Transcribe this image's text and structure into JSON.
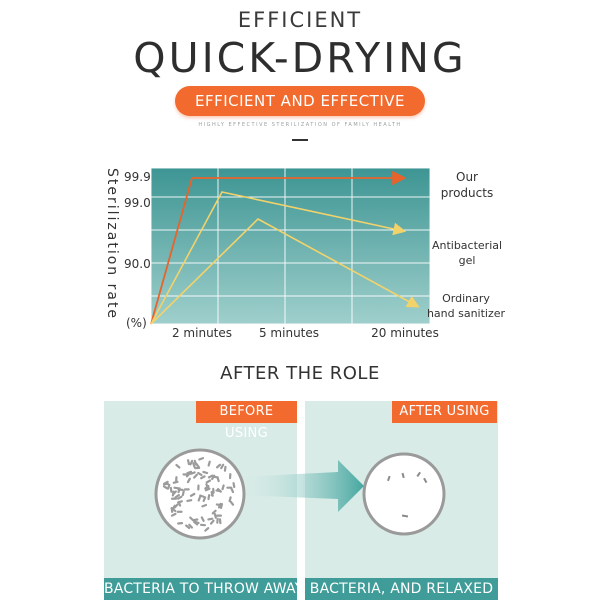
{
  "header": {
    "eyebrow": "EFFICIENT",
    "headline": "QUICK-DRYING",
    "pill": "EFFICIENT AND EFFECTIVE",
    "tagline": "HIGHLY EFFECTIVE STERILIZATION OF FAMILY HEALTH"
  },
  "chart_data": {
    "type": "line",
    "ylabel": "Sterilization rate",
    "y_ticks": [
      "99.9",
      "99.0",
      "90.0",
      "(%)"
    ],
    "x_ticks": [
      "2 minutes",
      "5 minutes",
      "20 minutes"
    ],
    "grid": true,
    "series": [
      {
        "name": "Our products",
        "name_lines": [
          "Our",
          "products"
        ],
        "color": "#e8632b",
        "points": [
          0,
          99.9,
          99.9,
          99.9
        ]
      },
      {
        "name": "Antibacterial gel",
        "name_lines": [
          "Antibacterial",
          "gel"
        ],
        "color": "#f2d36b",
        "points": [
          0,
          99.5,
          99.0,
          95.0
        ]
      },
      {
        "name": "Ordinary hand sanitizer",
        "name_lines": [
          "Ordinary",
          "hand sanitizer"
        ],
        "color": "#f2d36b",
        "points": [
          0,
          92.0,
          97.0,
          89.0
        ]
      }
    ]
  },
  "after": {
    "title": "AFTER THE ROLE",
    "before_tag": "BEFORE USING",
    "after_tag": "AFTER USING",
    "before_caption": "BACTERIA TO THROW AWAY",
    "after_caption": "BACTERIA, AND RELAXED"
  },
  "colors": {
    "accent": "#f26a2d",
    "chart_teal_dark": "#3d9593",
    "chart_teal_light": "#8fc6c3",
    "panel_bg": "#d8ebe7",
    "caption_bg": "#3f9c98"
  }
}
